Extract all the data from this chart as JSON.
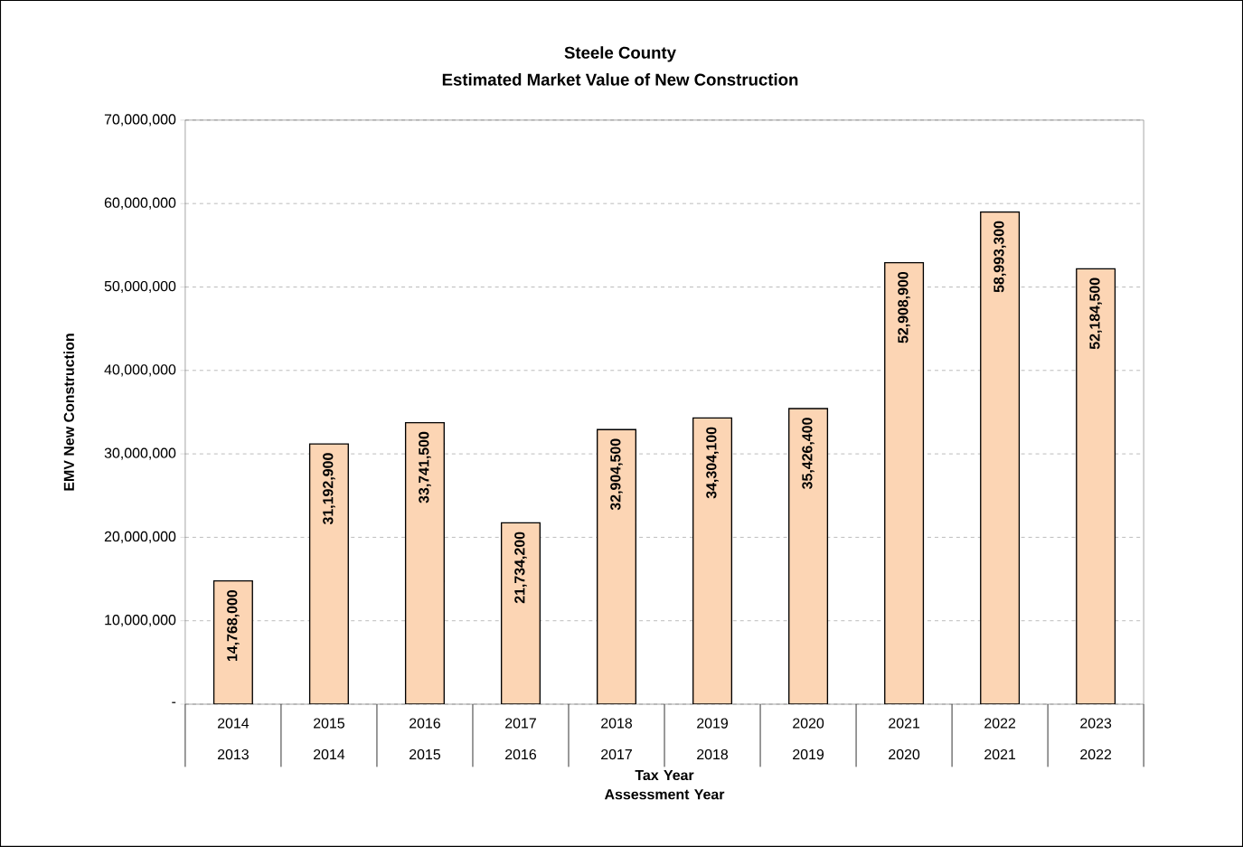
{
  "chart_data": {
    "type": "bar",
    "title": "Steele County",
    "subtitle": "Estimated Market Value of New Construction",
    "xlabel": "Tax Year Assessment Year",
    "ylabel": "EMV New Construction",
    "categories": [
      "2014 2013",
      "2015 2014",
      "2016 2015",
      "2017 2016",
      "2018 2017",
      "2019 2018",
      "2020 2019",
      "2021 2020",
      "2022 2021",
      "2023 2022"
    ],
    "values": [
      14768000,
      31192900,
      33741500,
      21734200,
      32904500,
      34304100,
      35426400,
      52908900,
      58993300,
      52184500
    ],
    "value_labels": [
      "14,768,000",
      "31,192,900",
      "33,741,500",
      "21,734,200",
      "32,904,500",
      "34,304,100",
      "35,426,400",
      "52,908,900",
      "58,993,300",
      "52,184,500"
    ],
    "color": "#fcd5b4",
    "ylim": [
      0,
      70000000
    ],
    "yticks": [
      {
        "value": 0,
        "label": "-"
      },
      {
        "value": 10000000,
        "label": "10,000,000"
      },
      {
        "value": 20000000,
        "label": "20,000,000"
      },
      {
        "value": 30000000,
        "label": "30,000,000"
      },
      {
        "value": 40000000,
        "label": "40,000,000"
      },
      {
        "value": 50000000,
        "label": "50,000,000"
      },
      {
        "value": 60000000,
        "label": "60,000,000"
      },
      {
        "value": 70000000,
        "label": "70,000,000"
      }
    ],
    "grid": "y"
  }
}
